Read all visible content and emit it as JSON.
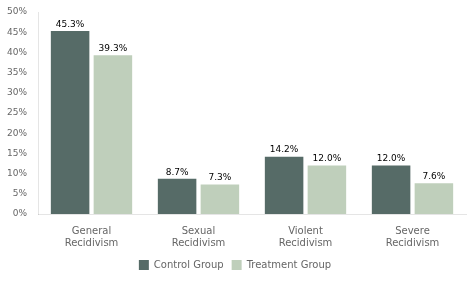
{
  "chart_data": {
    "type": "bar",
    "categories": [
      "General Recidivism",
      "Sexual Recidivism",
      "Violent Recidivism",
      "Severe Recidivism"
    ],
    "series": [
      {
        "name": "Control Group",
        "color": "#566b67",
        "values": [
          45.3,
          8.7,
          14.2,
          12.0
        ],
        "value_labels": [
          "45.3%",
          "8.7%",
          "14.2%",
          "12.0%"
        ]
      },
      {
        "name": "Treatment Group",
        "color": "#bfcfbb",
        "values": [
          39.3,
          7.3,
          12.0,
          7.6
        ],
        "value_labels": [
          "39.3%",
          "7.3%",
          "12.0%",
          "7.6%"
        ]
      }
    ],
    "ylim": [
      0,
      50
    ],
    "yticks": [
      {
        "value": 0,
        "label": "0%"
      },
      {
        "value": 5,
        "label": "5%"
      },
      {
        "value": 10,
        "label": "10%"
      },
      {
        "value": 15,
        "label": "15%"
      },
      {
        "value": 20,
        "label": "20%"
      },
      {
        "value": 25,
        "label": "25%"
      },
      {
        "value": 30,
        "label": "30%"
      },
      {
        "value": 35,
        "label": "35%"
      },
      {
        "value": 40,
        "label": "40%"
      },
      {
        "value": 45,
        "label": "45%"
      },
      {
        "value": 50,
        "label": "50%"
      }
    ],
    "grid": false,
    "legend": "bottom",
    "data_labels": true
  }
}
